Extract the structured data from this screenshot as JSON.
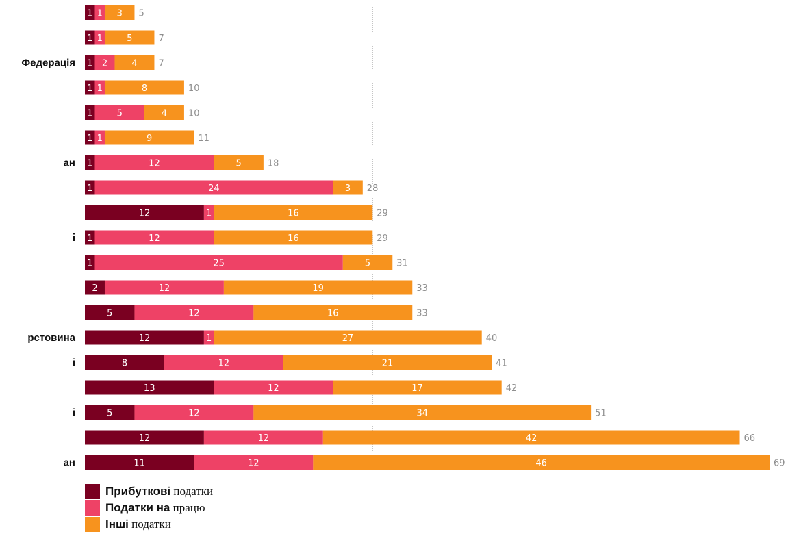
{
  "chart_data": {
    "type": "bar",
    "orientation": "horizontal",
    "stacked": true,
    "title": "",
    "xlabel": "",
    "ylabel": "",
    "xlim": [
      0,
      69
    ],
    "reference_line": 29,
    "categories": [
      "",
      "",
      "Федерація",
      "",
      "",
      "",
      "ан",
      "",
      "",
      "і",
      "",
      "",
      "",
      "рстовина",
      "і",
      "",
      "і",
      "",
      "ан"
    ],
    "series": [
      {
        "name": "Прибуткові податки",
        "color": "#7a0021",
        "values": [
          1,
          1,
          1,
          1,
          1,
          1,
          1,
          1,
          12,
          1,
          1,
          2,
          5,
          12,
          8,
          13,
          5,
          12,
          11
        ]
      },
      {
        "name": "Податки на працю",
        "color": "#ee4266",
        "values": [
          1,
          1,
          2,
          1,
          5,
          1,
          12,
          24,
          1,
          12,
          25,
          12,
          12,
          1,
          12,
          12,
          12,
          12,
          12
        ]
      },
      {
        "name": "Інші податки",
        "color": "#f7931e",
        "values": [
          3,
          5,
          4,
          8,
          4,
          9,
          5,
          3,
          16,
          16,
          5,
          19,
          16,
          27,
          21,
          17,
          34,
          42,
          46
        ]
      }
    ],
    "totals": [
      5,
      7,
      7,
      10,
      10,
      11,
      18,
      28,
      29,
      29,
      31,
      33,
      33,
      40,
      41,
      42,
      51,
      66,
      69
    ],
    "legend": {
      "position": "bottom-left",
      "items": [
        {
          "bold": "Прибуткові",
          "rest": " податки",
          "color": "#7a0021"
        },
        {
          "bold": "Податки на",
          "rest": " працю",
          "color": "#ee4266"
        },
        {
          "bold": "Інші",
          "rest": " податки",
          "color": "#f7931e"
        }
      ]
    }
  }
}
